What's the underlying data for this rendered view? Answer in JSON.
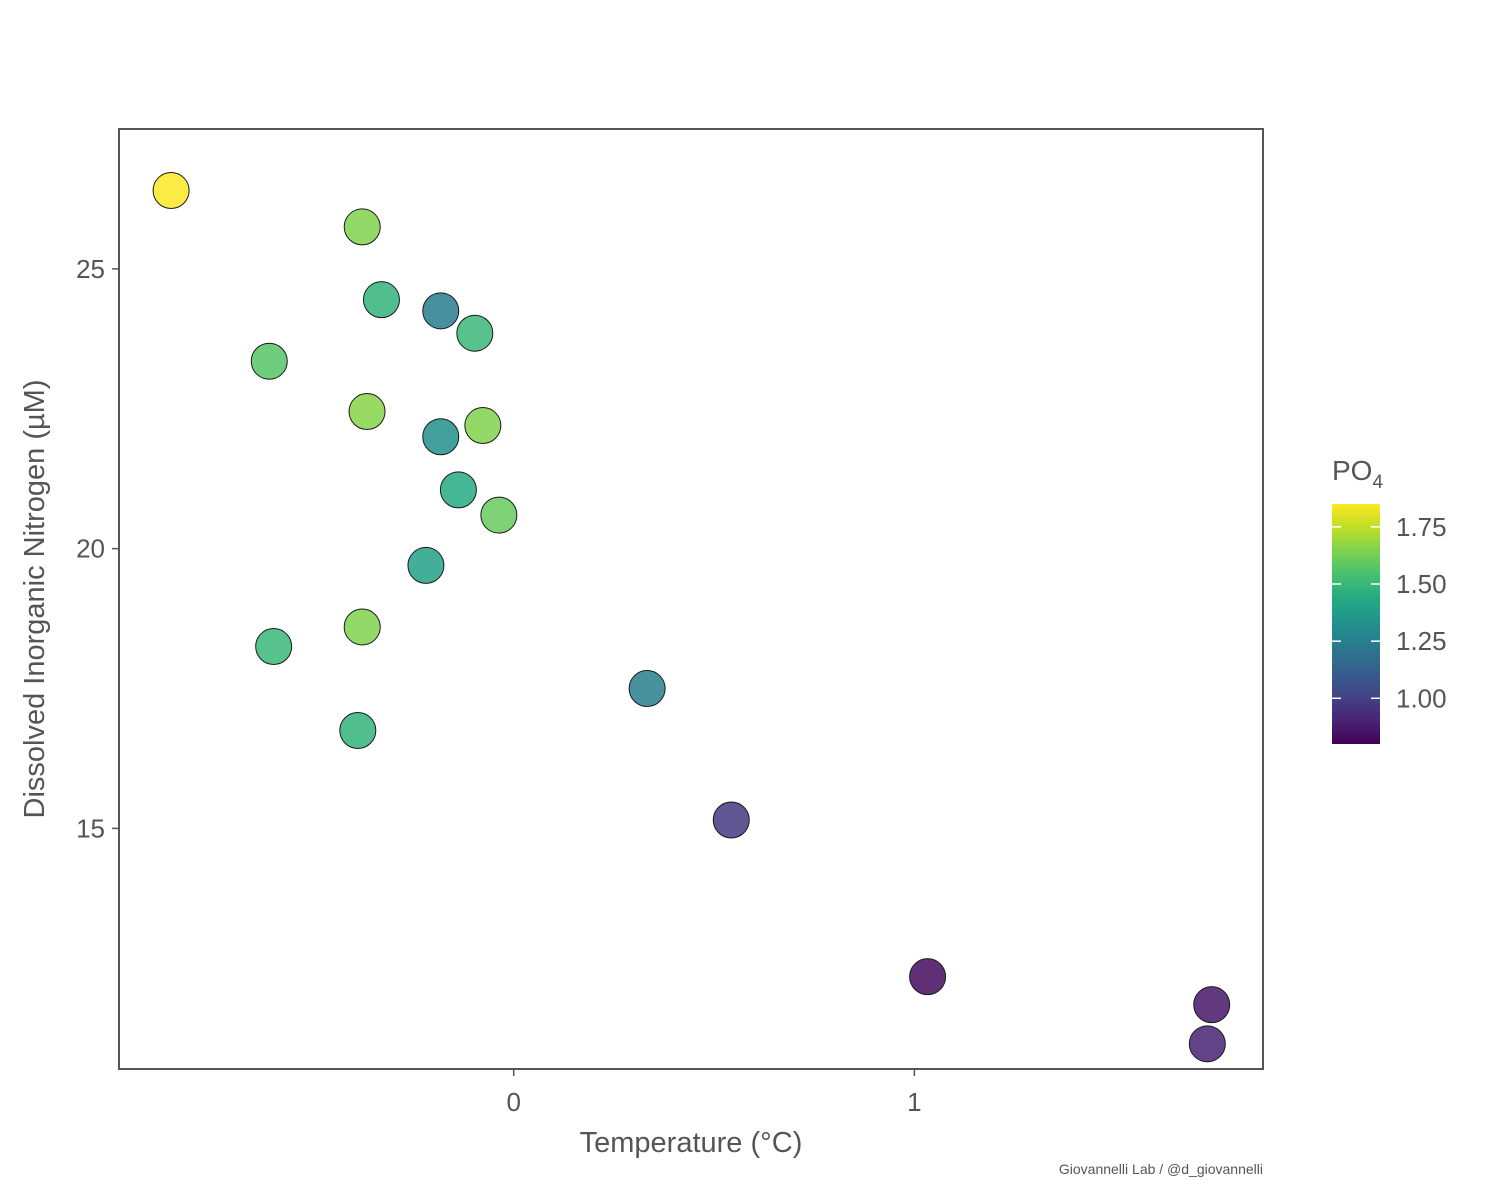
{
  "chart_data": {
    "type": "scatter",
    "xlabel": "Temperature (°C)",
    "ylabel": "Dissolved Inorganic Nitrogen (µM)",
    "xlim": [
      -0.985,
      1.87
    ],
    "ylim": [
      10.7,
      27.5
    ],
    "xticks": [
      {
        "value": 0,
        "label": "0"
      },
      {
        "value": 1,
        "label": "1"
      }
    ],
    "yticks": [
      {
        "value": 15,
        "label": "15"
      },
      {
        "value": 20,
        "label": "20"
      },
      {
        "value": 25,
        "label": "25"
      }
    ],
    "grid": false,
    "legend": {
      "title_main": "PO",
      "title_sub": "4",
      "placement": "right",
      "range": [
        0.8,
        1.85
      ],
      "ticks": [
        {
          "value": 1.0,
          "label": "1.00"
        },
        {
          "value": 1.25,
          "label": "1.25"
        },
        {
          "value": 1.5,
          "label": "1.50"
        },
        {
          "value": 1.75,
          "label": "1.75"
        }
      ]
    },
    "points": [
      {
        "x": -0.855,
        "y": 26.4,
        "c": 1.85
      },
      {
        "x": -0.378,
        "y": 25.75,
        "c": 1.65
      },
      {
        "x": -0.33,
        "y": 24.45,
        "c": 1.48
      },
      {
        "x": -0.182,
        "y": 24.25,
        "c": 1.24
      },
      {
        "x": -0.097,
        "y": 23.85,
        "c": 1.5
      },
      {
        "x": -0.61,
        "y": 23.35,
        "c": 1.57
      },
      {
        "x": -0.366,
        "y": 22.45,
        "c": 1.66
      },
      {
        "x": -0.077,
        "y": 22.2,
        "c": 1.65
      },
      {
        "x": -0.182,
        "y": 22.0,
        "c": 1.32
      },
      {
        "x": -0.138,
        "y": 21.05,
        "c": 1.44
      },
      {
        "x": -0.037,
        "y": 20.6,
        "c": 1.6
      },
      {
        "x": -0.219,
        "y": 19.7,
        "c": 1.4
      },
      {
        "x": -0.378,
        "y": 18.6,
        "c": 1.65
      },
      {
        "x": -0.599,
        "y": 18.25,
        "c": 1.5
      },
      {
        "x": -0.389,
        "y": 16.75,
        "c": 1.48
      },
      {
        "x": 0.333,
        "y": 17.5,
        "c": 1.25
      },
      {
        "x": 0.543,
        "y": 15.15,
        "c": 0.97
      },
      {
        "x": 1.033,
        "y": 12.35,
        "c": 0.83
      },
      {
        "x": 1.742,
        "y": 11.85,
        "c": 0.86
      },
      {
        "x": 1.731,
        "y": 11.15,
        "c": 0.9
      }
    ],
    "colormap": "viridis",
    "point_stroke": "#1a1a1a",
    "frame_color": "#555555"
  },
  "caption": "Giovannelli Lab / @d_giovannelli"
}
